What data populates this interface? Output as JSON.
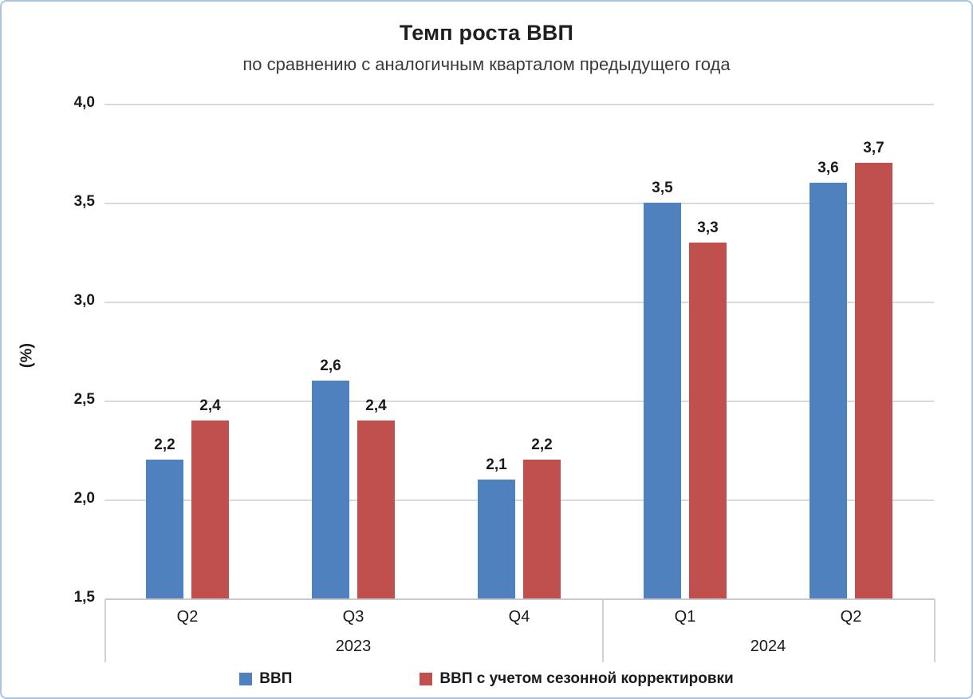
{
  "chart_data": {
    "type": "bar",
    "title": "Темп роста ВВП",
    "subtitle": "по сравнению с аналогичным кварталом предыдущего года",
    "ylabel": "(%)",
    "ylim": [
      1.5,
      4.0
    ],
    "grid": "horizontal",
    "legend_position": "bottom",
    "yticks": [
      {
        "value": 4.0,
        "label": "4,0"
      },
      {
        "value": 3.5,
        "label": "3,5"
      },
      {
        "value": 3.0,
        "label": "3,0"
      },
      {
        "value": 2.5,
        "label": "2,5"
      },
      {
        "value": 2.0,
        "label": "2,0"
      },
      {
        "value": 1.5,
        "label": "1,5"
      }
    ],
    "categories": [
      "Q2",
      "Q3",
      "Q4",
      "Q1",
      "Q2"
    ],
    "year_groups": [
      {
        "label": "2023",
        "span": 3
      },
      {
        "label": "2024",
        "span": 2
      }
    ],
    "series": [
      {
        "name": "ВВП",
        "color": "#4e81bd",
        "values": [
          2.2,
          2.6,
          2.1,
          3.5,
          3.6
        ],
        "labels": [
          "2,2",
          "2,6",
          "2,1",
          "3,5",
          "3,6"
        ]
      },
      {
        "name": "ВВП с учетом сезонной корректировки",
        "color": "#c0504d",
        "values": [
          2.4,
          2.4,
          2.2,
          3.3,
          3.7
        ],
        "labels": [
          "2,4",
          "2,4",
          "2,2",
          "3,3",
          "3,7"
        ]
      }
    ],
    "colors": {
      "figure_border": "#aac4e6",
      "gridline": "#d9d9d9",
      "axis_line": "#c9c9c9",
      "text": "#1a1a1a"
    }
  }
}
